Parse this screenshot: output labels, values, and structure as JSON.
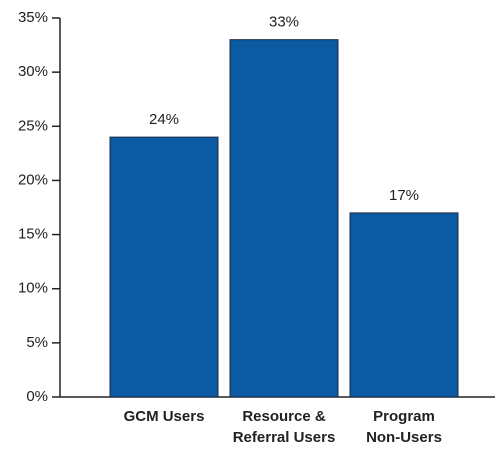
{
  "chart_data": {
    "type": "bar",
    "categories": [
      "GCM Users",
      "Resource &\nReferral Users",
      "Program\nNon-Users"
    ],
    "values": [
      24,
      33,
      17
    ],
    "value_labels": [
      "24%",
      "33%",
      "17%"
    ],
    "color": "#0b5aa2",
    "ylim": [
      0,
      35
    ],
    "yticks": [
      {
        "value": 0,
        "label": "0%"
      },
      {
        "value": 5,
        "label": "5%"
      },
      {
        "value": 10,
        "label": "10%"
      },
      {
        "value": 15,
        "label": "15%"
      },
      {
        "value": 20,
        "label": "20%"
      },
      {
        "value": 25,
        "label": "25%"
      },
      {
        "value": 30,
        "label": "30%"
      },
      {
        "value": 35,
        "label": "35%"
      }
    ],
    "grid": false
  }
}
